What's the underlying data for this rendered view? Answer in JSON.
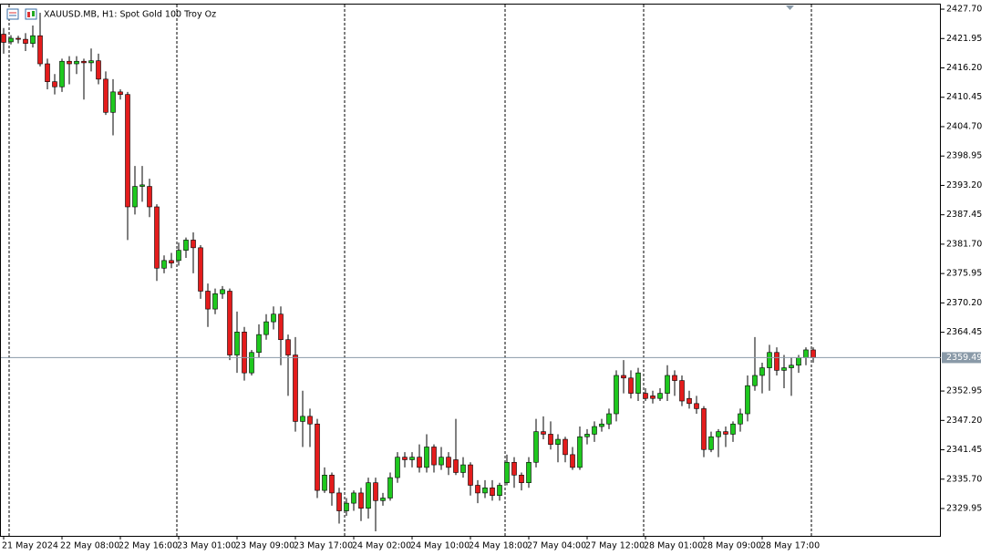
{
  "chart_data": {
    "type": "candlestick",
    "title": "XAUUSD.MB, H1:  Spot Gold 100 Troy Oz",
    "up_color": "#1ec81e",
    "down_color": "#e41c1c",
    "categories": [
      "21 May 2024",
      null,
      null,
      null,
      null,
      null,
      null,
      null,
      "22 May 08:00",
      null,
      null,
      null,
      null,
      null,
      null,
      null,
      "22 May 16:00",
      null,
      null,
      null,
      null,
      null,
      null,
      null,
      "23 May 01:00",
      null,
      null,
      null,
      null,
      null,
      null,
      null,
      "23 May 09:00",
      null,
      null,
      null,
      null,
      null,
      null,
      null,
      "23 May 17:00",
      null,
      null,
      null,
      null,
      null,
      null,
      null,
      "24 May 02:00",
      null,
      null,
      null,
      null,
      null,
      null,
      null,
      "24 May 10:00",
      null,
      null,
      null,
      null,
      null,
      null,
      null,
      "24 May 18:00",
      null,
      null,
      null,
      null,
      null,
      null,
      null,
      "27 May 04:00",
      null,
      null,
      null,
      null,
      null,
      null,
      null,
      "27 May 12:00",
      null,
      null,
      null,
      null,
      null,
      null,
      null,
      "28 May 01:00",
      null,
      null,
      null,
      null,
      null,
      null,
      null,
      "28 May 09:00",
      null,
      null,
      null,
      null,
      null,
      null,
      null,
      "28 May 17:00",
      null,
      null,
      null,
      null,
      null,
      null,
      null
    ],
    "open": [
      2422.8,
      2421.3,
      2422.0,
      2421.8,
      2421.0,
      2422.5,
      2417.0,
      2413.5,
      2412.5,
      2417.5,
      2417.0,
      2417.5,
      2417.2,
      2417.6,
      2414.0,
      2407.5,
      2411.5,
      2411.0,
      2389.0,
      2393.0,
      2393.0,
      2389.0,
      2377.0,
      2378.5,
      2378.5,
      2380.5,
      2382.5,
      2381.0,
      2372.5,
      2369.0,
      2372.0,
      2372.5,
      2360.0,
      2364.5,
      2356.5,
      2360.5,
      2364.0,
      2366.5,
      2368.0,
      2363.0,
      2360.0,
      2347.0,
      2348.0,
      2346.5,
      2333.5,
      2336.5,
      2333.0,
      2329.5,
      2331.0,
      2333.0,
      2330.0,
      2335.0,
      2331.5,
      2332.0,
      2336.0,
      2340.0,
      2339.5,
      2340.0,
      2338.0,
      2342.0,
      2338.5,
      2340.0,
      2339.5,
      2337.0,
      2338.5,
      2334.5,
      2333.0,
      2334.0,
      2332.5,
      2335.0,
      2339.0,
      2336.5,
      2335.0,
      2339.0,
      2345.0,
      2344.5,
      2342.5,
      2343.5,
      2340.5,
      2338.0,
      2344.0,
      2344.5,
      2346.0,
      2346.5,
      2348.5,
      2356.0,
      2355.5,
      2352.5,
      2352.5,
      2352.0,
      2351.5,
      2352.5,
      2356.0,
      2355.0,
      2351.5,
      2350.5,
      2349.5,
      2341.5,
      2344.0,
      2345.0,
      2344.5,
      2346.5,
      2348.5,
      2354.0,
      2356.0,
      2357.5,
      2360.5,
      2357.0,
      2357.5,
      2358.0,
      2359.5,
      2361.0
    ],
    "high": [
      2424.0,
      2422.6,
      2422.5,
      2423.0,
      2424.5,
      2427.0,
      2418.0,
      2415.0,
      2418.0,
      2418.5,
      2418.5,
      2418.0,
      2420.0,
      2419.0,
      2415.5,
      2414.0,
      2412.0,
      2411.5,
      2397.0,
      2397.0,
      2394.5,
      2389.5,
      2379.5,
      2380.0,
      2382.0,
      2383.0,
      2384.0,
      2381.5,
      2374.0,
      2373.0,
      2373.5,
      2373.0,
      2368.5,
      2365.5,
      2361.0,
      2366.0,
      2368.0,
      2369.5,
      2369.5,
      2364.0,
      2363.5,
      2353.0,
      2349.5,
      2347.5,
      2338.0,
      2337.0,
      2334.0,
      2332.0,
      2333.5,
      2334.0,
      2336.0,
      2336.0,
      2333.0,
      2337.0,
      2341.0,
      2341.0,
      2341.0,
      2342.5,
      2344.5,
      2342.5,
      2342.0,
      2341.0,
      2347.5,
      2340.0,
      2339.0,
      2335.5,
      2335.5,
      2335.5,
      2335.0,
      2340.5,
      2340.0,
      2337.0,
      2340.0,
      2347.5,
      2348.0,
      2347.0,
      2344.5,
      2344.0,
      2342.0,
      2346.0,
      2345.5,
      2347.0,
      2347.5,
      2349.5,
      2357.0,
      2359.0,
      2357.0,
      2357.5,
      2353.5,
      2353.0,
      2353.5,
      2358.0,
      2357.0,
      2356.0,
      2353.0,
      2352.0,
      2350.0,
      2345.0,
      2345.5,
      2346.0,
      2347.0,
      2349.5,
      2356.0,
      2363.5,
      2358.5,
      2362.0,
      2361.5,
      2360.0,
      2359.5,
      2360.0,
      2361.5,
      2361.5
    ],
    "low": [
      2419.0,
      2420.8,
      2421.0,
      2419.5,
      2420.2,
      2416.5,
      2412.0,
      2411.0,
      2411.5,
      2413.0,
      2415.0,
      2410.0,
      2415.5,
      2413.0,
      2407.0,
      2403.0,
      2410.0,
      2382.5,
      2387.5,
      2390.0,
      2387.0,
      2374.5,
      2376.0,
      2377.0,
      2377.5,
      2379.0,
      2376.0,
      2371.0,
      2365.5,
      2368.0,
      2371.0,
      2359.0,
      2356.5,
      2355.0,
      2356.0,
      2359.5,
      2363.0,
      2365.0,
      2358.0,
      2352.0,
      2345.0,
      2342.0,
      2342.0,
      2332.0,
      2333.0,
      2330.5,
      2327.0,
      2328.5,
      2329.5,
      2327.5,
      2328.0,
      2325.5,
      2330.5,
      2331.5,
      2335.0,
      2338.0,
      2338.0,
      2337.0,
      2337.0,
      2337.0,
      2337.5,
      2336.5,
      2336.5,
      2336.0,
      2332.5,
      2331.0,
      2332.0,
      2331.5,
      2331.5,
      2334.5,
      2334.0,
      2333.5,
      2334.0,
      2338.0,
      2343.5,
      2341.5,
      2339.0,
      2339.0,
      2337.5,
      2337.5,
      2342.5,
      2343.0,
      2345.0,
      2345.5,
      2347.0,
      2352.5,
      2351.5,
      2351.0,
      2351.0,
      2350.5,
      2351.0,
      2351.0,
      2352.0,
      2350.0,
      2349.5,
      2348.5,
      2340.0,
      2341.0,
      2340.0,
      2342.0,
      2343.0,
      2345.0,
      2347.0,
      2353.0,
      2352.5,
      2353.0,
      2356.0,
      2353.5,
      2352.0,
      2356.5,
      2358.0,
      2358.5
    ],
    "close": [
      2421.2,
      2422.0,
      2421.8,
      2421.0,
      2422.5,
      2417.0,
      2413.5,
      2412.5,
      2417.5,
      2417.0,
      2417.5,
      2417.2,
      2417.6,
      2414.0,
      2407.5,
      2411.5,
      2411.0,
      2389.0,
      2393.0,
      2393.3,
      2389.0,
      2377.0,
      2378.5,
      2378.0,
      2380.5,
      2382.5,
      2381.0,
      2372.5,
      2369.0,
      2372.0,
      2372.8,
      2360.0,
      2364.5,
      2356.5,
      2360.5,
      2364.0,
      2366.5,
      2368.0,
      2363.0,
      2360.0,
      2347.0,
      2348.0,
      2346.5,
      2333.5,
      2336.5,
      2333.0,
      2329.5,
      2331.0,
      2333.0,
      2330.0,
      2335.0,
      2331.5,
      2332.0,
      2336.0,
      2340.0,
      2339.5,
      2340.0,
      2338.0,
      2342.0,
      2338.5,
      2340.0,
      2338.0,
      2337.0,
      2338.5,
      2334.5,
      2333.0,
      2334.0,
      2332.5,
      2334.5,
      2339.0,
      2336.5,
      2335.0,
      2339.0,
      2345.0,
      2344.5,
      2342.5,
      2343.5,
      2340.5,
      2338.0,
      2344.0,
      2344.5,
      2346.0,
      2346.5,
      2348.5,
      2356.0,
      2355.5,
      2352.5,
      2356.5,
      2351.5,
      2351.5,
      2352.5,
      2356.0,
      2355.0,
      2351.0,
      2350.5,
      2349.5,
      2341.5,
      2344.0,
      2345.0,
      2344.5,
      2346.5,
      2348.5,
      2354.0,
      2356.0,
      2357.5,
      2360.5,
      2357.0,
      2357.5,
      2358.0,
      2359.5,
      2361.0,
      2359.49
    ],
    "last_price": 2359.49,
    "ylim": [
      2324.6,
      2428.6
    ],
    "yticks": [
      {
        "value": 2427.7,
        "label": "2427.70"
      },
      2421.95,
      {
        "value": 2416.2,
        "label": "2416.20"
      },
      2410.45,
      {
        "value": 2404.7,
        "label": "2404.70"
      },
      2398.95,
      {
        "value": 2393.2,
        "label": "2393.20"
      },
      2387.45,
      {
        "value": 2381.7,
        "label": "2381.70"
      },
      2375.95,
      {
        "value": 2370.2,
        "label": "2370.20"
      },
      2364.45,
      2352.95,
      {
        "value": 2347.2,
        "label": "2347.20"
      },
      2341.45,
      {
        "value": 2335.7,
        "label": "2335.70"
      },
      2329.95
    ]
  }
}
